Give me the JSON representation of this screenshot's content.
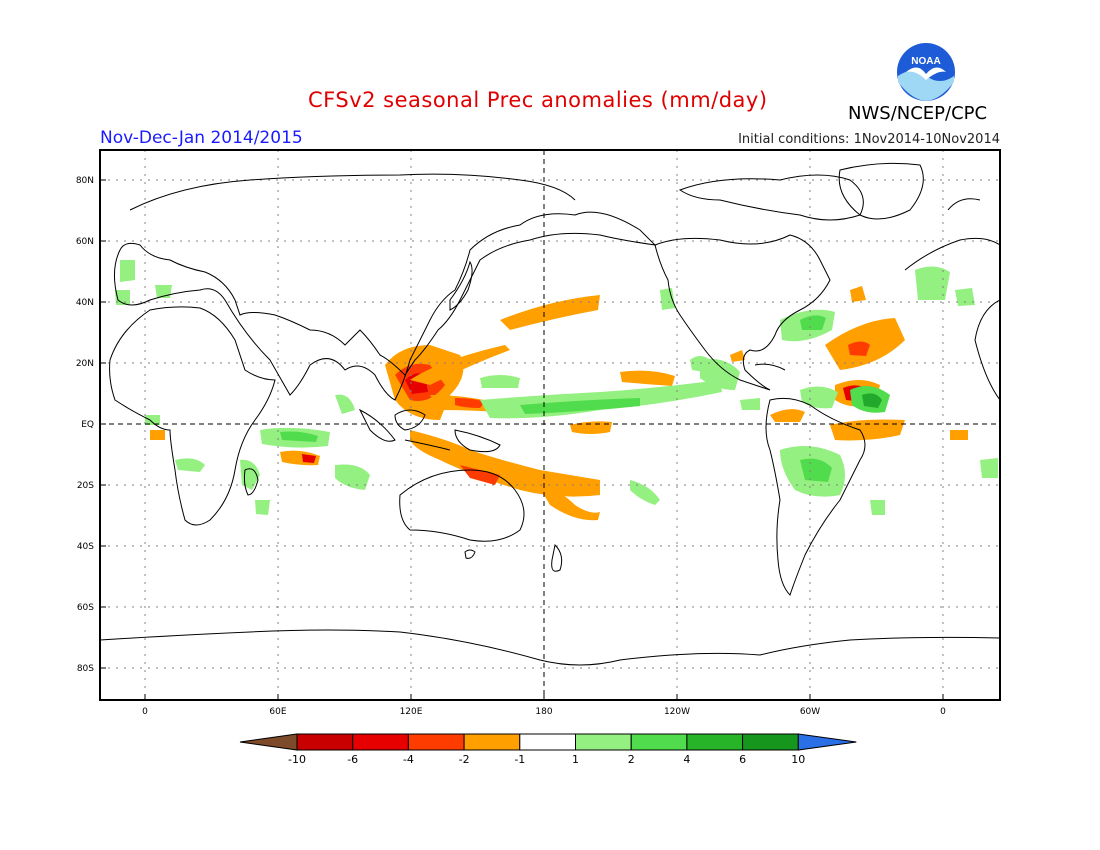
{
  "header": {
    "title": "CFSv2 seasonal Prec anomalies (mm/day)",
    "period": "Nov-Dec-Jan 2014/2015",
    "initial_conditions": "Initial conditions: 1Nov2014-10Nov2014",
    "agency": "NWS/NCEP/CPC",
    "logo_text": "NOAA"
  },
  "map": {
    "lat_labels": [
      "80N",
      "60N",
      "40N",
      "20N",
      "EQ",
      "20S",
      "40S",
      "60S",
      "80S"
    ],
    "lon_labels": [
      "0",
      "60E",
      "120E",
      "180",
      "120W",
      "60W",
      "0"
    ],
    "colors": {
      "dry_strong": "#c80000",
      "dry_mid": "#e60000",
      "dry": "#ff3c00",
      "dry_weak": "#ff9f00",
      "wet_weak": "#94f080",
      "wet": "#50dc4c",
      "wet_strong": "#22a82a",
      "land_outline": "#000000"
    }
  },
  "colorbar": {
    "labels": [
      "-10",
      "-6",
      "-4",
      "-2",
      "-1",
      "1",
      "2",
      "4",
      "6",
      "10"
    ],
    "colors": [
      "#7d4a2a",
      "#c80000",
      "#e60000",
      "#ff3c00",
      "#ff9f00",
      "#ffffff",
      "#94f080",
      "#50dc4c",
      "#28b428",
      "#16961c",
      "#2a6fe6"
    ]
  }
}
